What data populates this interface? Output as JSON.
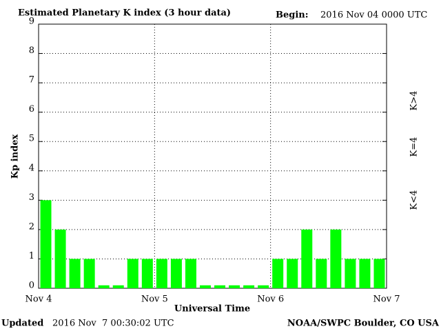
{
  "chart_data": {
    "type": "bar",
    "title": "Estimated Planetary K index (3 hour data)",
    "begin_label": "Begin:",
    "begin_value": "2016 Nov 04 0000 UTC",
    "y_label": "Kp index",
    "x_label": "Universal Time",
    "updated_label": "Updated",
    "updated_value": "2016 Nov  7 00:30:02 UTC",
    "source": "NOAA/SWPC Boulder, CO USA",
    "x_labels": [
      "Nov 4",
      "Nov 5",
      "Nov 6",
      "Nov 7"
    ],
    "categories": [
      null,
      null,
      null,
      null,
      null,
      null,
      null,
      null,
      null,
      null,
      null,
      null,
      null,
      null,
      null,
      null,
      null,
      null,
      null,
      null,
      null,
      null,
      null,
      null
    ],
    "values": [
      3,
      2,
      1,
      1,
      0.1,
      0.1,
      1,
      1,
      1,
      1,
      1,
      0.1,
      0.1,
      0.1,
      0.1,
      0.1,
      1,
      1,
      2,
      1,
      2,
      1,
      1,
      1
    ],
    "color": "#00ff00",
    "ylim": [
      0,
      9
    ],
    "yticks": [
      0,
      1,
      2,
      3,
      4,
      5,
      6,
      7,
      8,
      9
    ],
    "grid": true,
    "legend": [
      {
        "name": "K<4",
        "color": "#22e022"
      },
      {
        "name": "K=4",
        "color": "#ffcc00"
      },
      {
        "name": "K>4",
        "color": "#ff2a00"
      }
    ]
  }
}
